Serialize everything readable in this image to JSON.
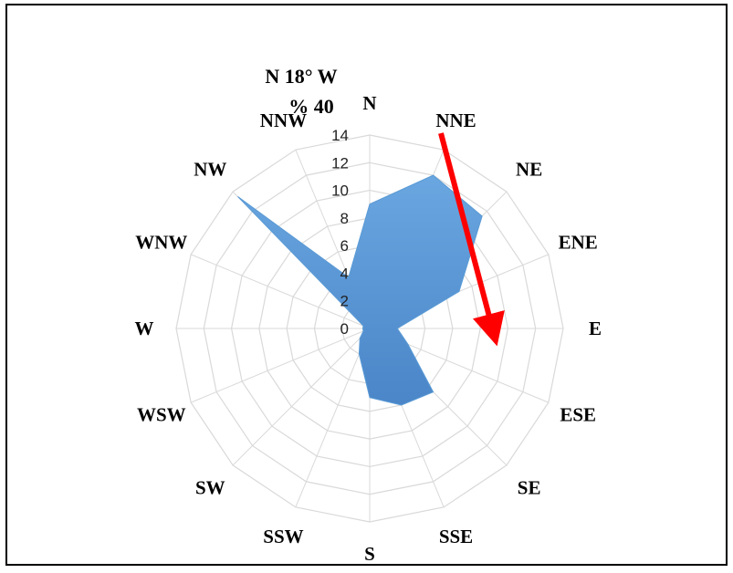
{
  "chart_data": {
    "type": "radar",
    "directions": [
      "N",
      "NNE",
      "NE",
      "ENE",
      "E",
      "ESE",
      "SE",
      "SSE",
      "S",
      "SSW",
      "SW",
      "WSW",
      "W",
      "WNW",
      "NW",
      "NNW"
    ],
    "series": [
      {
        "values": [
          9,
          12,
          11.5,
          7,
          2,
          3,
          6.5,
          6,
          5,
          2,
          1,
          0.5,
          0.5,
          0.5,
          13.5,
          4
        ]
      }
    ],
    "rlim": [
      0,
      14
    ],
    "ticks": [
      0,
      2,
      4,
      6,
      8,
      10,
      12,
      14
    ],
    "colors": {
      "series": "#5b9bd5",
      "grid": "#d9d9d9",
      "arrow": "#ff0000"
    },
    "annotation": {
      "line1": "N 18° W",
      "line2": "% 40"
    }
  }
}
